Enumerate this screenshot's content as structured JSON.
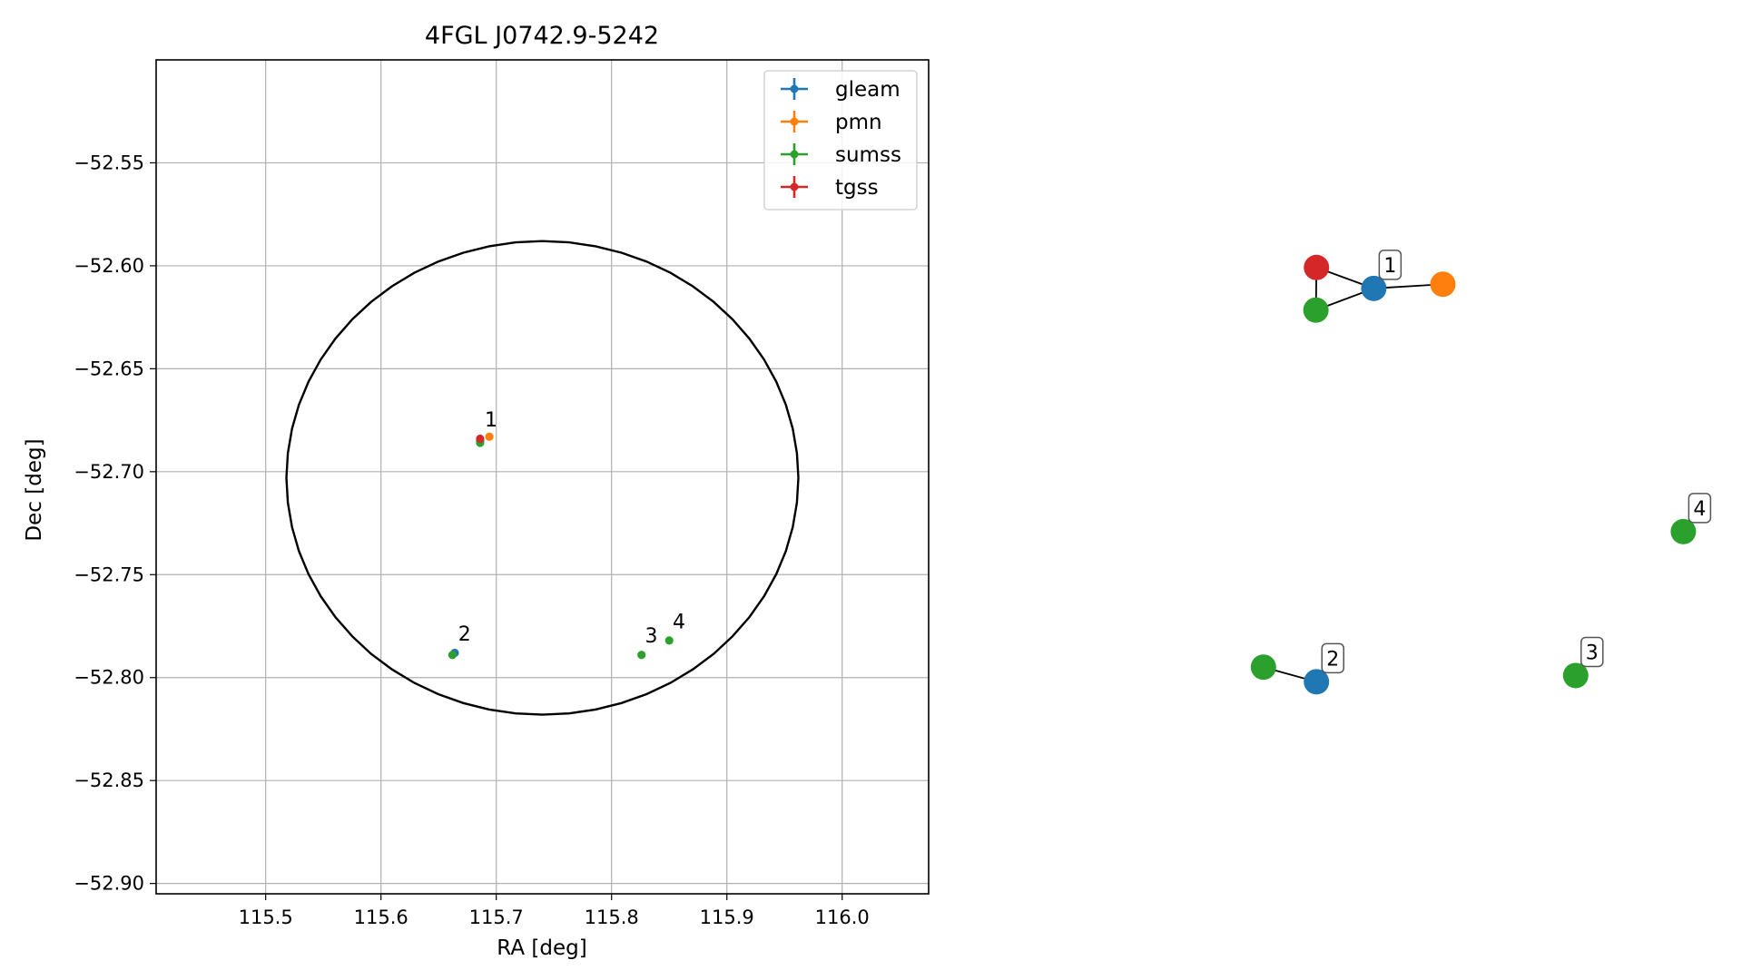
{
  "chart_data": [
    {
      "type": "scatter",
      "title": "4FGL J0742.9-5242",
      "xlabel": "RA [deg]",
      "ylabel": "Dec [deg]",
      "xlim": [
        115.405,
        116.075
      ],
      "ylim": [
        -52.905,
        -52.5
      ],
      "x_ticks": [
        115.5,
        115.6,
        115.7,
        115.8,
        115.9,
        116.0
      ],
      "x_tick_labels": [
        "115.5",
        "115.6",
        "115.7",
        "115.8",
        "115.9",
        "116.0"
      ],
      "y_ticks": [
        -52.55,
        -52.6,
        -52.65,
        -52.7,
        -52.75,
        -52.8,
        -52.85,
        -52.9
      ],
      "y_tick_labels": [
        "−52.55",
        "−52.60",
        "−52.65",
        "−52.70",
        "−52.75",
        "−52.80",
        "−52.85",
        "−52.90"
      ],
      "grid": true,
      "legend_position": "top-right",
      "error_ellipse": {
        "center": [
          115.74,
          -52.703
        ],
        "ra_radius": 0.222,
        "dec_radius": 0.115
      },
      "series": [
        {
          "name": "gleam",
          "color": "#1f77b4",
          "points": [
            [
              115.686,
              -52.685
            ],
            [
              115.664,
              -52.788
            ]
          ]
        },
        {
          "name": "pmn",
          "color": "#ff7f0e",
          "points": [
            [
              115.694,
              -52.683
            ]
          ]
        },
        {
          "name": "sumss",
          "color": "#2ca02c",
          "points": [
            [
              115.686,
              -52.686
            ],
            [
              115.662,
              -52.789
            ],
            [
              115.826,
              -52.789
            ],
            [
              115.85,
              -52.782
            ]
          ]
        },
        {
          "name": "tgss",
          "color": "#d62728",
          "points": [
            [
              115.686,
              -52.684
            ]
          ]
        }
      ],
      "annotations": [
        {
          "text": "1",
          "x": 115.69,
          "y": -52.678
        },
        {
          "text": "2",
          "x": 115.667,
          "y": -52.782
        },
        {
          "text": "3",
          "x": 115.829,
          "y": -52.783
        },
        {
          "text": "4",
          "x": 115.853,
          "y": -52.776
        }
      ]
    },
    {
      "type": "network",
      "nodes": [
        {
          "id": "g1",
          "color": "#1f77b4",
          "x": 0.404,
          "y": 0.782
        },
        {
          "id": "p1",
          "color": "#ff7f0e",
          "x": 0.533,
          "y": 0.788
        },
        {
          "id": "t1",
          "color": "#d62728",
          "x": 0.297,
          "y": 0.812
        },
        {
          "id": "s1",
          "color": "#2ca02c",
          "x": 0.296,
          "y": 0.751
        },
        {
          "id": "s2",
          "color": "#2ca02c",
          "x": 0.198,
          "y": 0.24
        },
        {
          "id": "g2",
          "color": "#1f77b4",
          "x": 0.297,
          "y": 0.219
        },
        {
          "id": "s3",
          "color": "#2ca02c",
          "x": 0.781,
          "y": 0.228
        },
        {
          "id": "s4",
          "color": "#2ca02c",
          "x": 0.982,
          "y": 0.434
        }
      ],
      "edges": [
        [
          "t1",
          "g1"
        ],
        [
          "t1",
          "s1"
        ],
        [
          "s1",
          "g1"
        ],
        [
          "g1",
          "p1"
        ],
        [
          "s2",
          "g2"
        ]
      ],
      "labels": [
        {
          "text": "1",
          "node": "g1"
        },
        {
          "text": "2",
          "node": "g2"
        },
        {
          "text": "3",
          "node": "s3"
        },
        {
          "text": "4",
          "node": "s4"
        }
      ]
    }
  ]
}
